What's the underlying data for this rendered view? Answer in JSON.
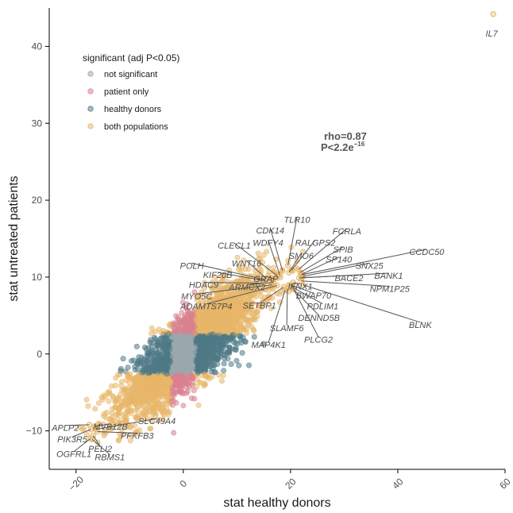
{
  "chart_data": {
    "type": "scatter",
    "xlabel": "stat healthy donors",
    "ylabel": "stat untreated patients",
    "xlim": [
      -25,
      60
    ],
    "ylim": [
      -15,
      45
    ],
    "x_ticks": [
      -20,
      0,
      20,
      40,
      60
    ],
    "y_ticks": [
      -10,
      0,
      10,
      20,
      30,
      40
    ],
    "grid": false,
    "legend": {
      "title": "significant (adj P<0.05)",
      "placement": "top-left",
      "entries": [
        {
          "name": "not significant",
          "color": "#9aa8ad"
        },
        {
          "name": "patient only",
          "color": "#d9828f"
        },
        {
          "name": "healthy donors",
          "color": "#4f7a86"
        },
        {
          "name": "both populations",
          "color": "#e8b66a"
        }
      ]
    },
    "annotation": {
      "rho_text": "rho=0.87",
      "p_text": "P<2.2e",
      "p_exponent": "−16"
    },
    "labeled_points": [
      {
        "gene": "IL7",
        "x": 57.8,
        "y": 44.2,
        "lx": 57.5,
        "ly": 41.7,
        "leader": false
      },
      {
        "gene": "TLR10",
        "x": 19.5,
        "y": 11.5,
        "lx": 21.2,
        "ly": 17.5,
        "leader": true
      },
      {
        "gene": "CDK14",
        "x": 18.5,
        "y": 10.8,
        "lx": 16.2,
        "ly": 16.1,
        "leader": true
      },
      {
        "gene": "FCRLA",
        "x": 21.5,
        "y": 11.0,
        "lx": 30.5,
        "ly": 16.0,
        "leader": true
      },
      {
        "gene": "RALGPS2",
        "x": 20.2,
        "y": 10.9,
        "lx": 24.6,
        "ly": 14.5,
        "leader": true
      },
      {
        "gene": "WDFY4",
        "x": 18.0,
        "y": 10.3,
        "lx": 15.8,
        "ly": 14.5,
        "leader": true
      },
      {
        "gene": "SPIB",
        "x": 21.8,
        "y": 10.6,
        "lx": 29.8,
        "ly": 13.6,
        "leader": true
      },
      {
        "gene": "CLECL1",
        "x": 17.5,
        "y": 10.2,
        "lx": 9.5,
        "ly": 14.1,
        "leader": true
      },
      {
        "gene": "SMO6",
        "x": 19.7,
        "y": 10.6,
        "lx": 22.0,
        "ly": 12.8,
        "leader": true
      },
      {
        "gene": "SP140",
        "x": 22.2,
        "y": 10.4,
        "lx": 29.0,
        "ly": 12.3,
        "leader": true
      },
      {
        "gene": "CCDC50",
        "x": 22.0,
        "y": 10.3,
        "lx": 45.4,
        "ly": 13.3,
        "leader": true
      },
      {
        "gene": "WNT16",
        "x": 15.5,
        "y": 9.8,
        "lx": 11.8,
        "ly": 11.8,
        "leader": true
      },
      {
        "gene": "POLH",
        "x": 15.0,
        "y": 9.7,
        "lx": 1.6,
        "ly": 11.5,
        "leader": true
      },
      {
        "gene": "SNX25",
        "x": 22.3,
        "y": 10.1,
        "lx": 34.7,
        "ly": 11.5,
        "leader": true
      },
      {
        "gene": "KIF20B",
        "x": 15.3,
        "y": 9.5,
        "lx": 6.4,
        "ly": 10.3,
        "leader": true
      },
      {
        "gene": "GRAP",
        "x": 16.8,
        "y": 9.8,
        "lx": 15.4,
        "ly": 9.8,
        "leader": true
      },
      {
        "gene": "BACE2",
        "x": 21.6,
        "y": 9.9,
        "lx": 30.9,
        "ly": 9.9,
        "leader": true
      },
      {
        "gene": "BANK1",
        "x": 22.1,
        "y": 9.9,
        "lx": 38.3,
        "ly": 10.2,
        "leader": true
      },
      {
        "gene": "HDAC9",
        "x": 15.0,
        "y": 9.2,
        "lx": 3.8,
        "ly": 9.0,
        "leader": true
      },
      {
        "gene": "ARMCX2",
        "x": 16.8,
        "y": 9.3,
        "lx": 11.9,
        "ly": 8.7,
        "leader": true
      },
      {
        "gene": "NPM1P25",
        "x": 22.0,
        "y": 9.5,
        "lx": 38.5,
        "ly": 8.5,
        "leader": true
      },
      {
        "gene": "IFNX1",
        "x": 20.5,
        "y": 9.3,
        "lx": 21.8,
        "ly": 8.8,
        "leader": true
      },
      {
        "gene": "MYO5C",
        "x": 16.6,
        "y": 9.0,
        "lx": 2.5,
        "ly": 7.5,
        "leader": true
      },
      {
        "gene": "BWAP70",
        "x": 20.0,
        "y": 9.0,
        "lx": 24.3,
        "ly": 7.6,
        "leader": true
      },
      {
        "gene": "ADAMTS7P4",
        "x": 17.5,
        "y": 8.9,
        "lx": 4.3,
        "ly": 6.2,
        "leader": true
      },
      {
        "gene": "SETBP1",
        "x": 18.7,
        "y": 8.7,
        "lx": 14.2,
        "ly": 6.3,
        "leader": true
      },
      {
        "gene": "PDLIM1",
        "x": 20.3,
        "y": 8.7,
        "lx": 26.0,
        "ly": 6.2,
        "leader": true
      },
      {
        "gene": "BLNK",
        "x": 22.3,
        "y": 9.0,
        "lx": 44.2,
        "ly": 3.8,
        "leader": true
      },
      {
        "gene": "DENND5B",
        "x": 20.4,
        "y": 8.5,
        "lx": 25.3,
        "ly": 4.7,
        "leader": true
      },
      {
        "gene": "SLAMF6",
        "x": 19.4,
        "y": 8.5,
        "lx": 19.3,
        "ly": 3.4,
        "leader": true
      },
      {
        "gene": "PLCG2",
        "x": 20.6,
        "y": 8.4,
        "lx": 25.2,
        "ly": 1.9,
        "leader": true
      },
      {
        "gene": "MAP4K1",
        "x": 19.0,
        "y": 8.3,
        "lx": 15.9,
        "ly": 1.2,
        "leader": true
      },
      {
        "gene": "APLP2",
        "x": -17.5,
        "y": -9.2,
        "lx": -22.0,
        "ly": -9.6,
        "leader": true
      },
      {
        "gene": "MVB12B",
        "x": -16.5,
        "y": -9.4,
        "lx": -13.6,
        "ly": -9.4,
        "leader": true
      },
      {
        "gene": "SLC49A4",
        "x": -16.2,
        "y": -9.8,
        "lx": -4.9,
        "ly": -8.7,
        "leader": true
      },
      {
        "gene": "PIK3R5",
        "x": -17.2,
        "y": -9.8,
        "lx": -20.7,
        "ly": -11.1,
        "leader": true
      },
      {
        "gene": "PFKFB3",
        "x": -16.0,
        "y": -10.1,
        "lx": -8.6,
        "ly": -10.6,
        "leader": true
      },
      {
        "gene": "PELI2",
        "x": -16.8,
        "y": -10.6,
        "lx": -15.5,
        "ly": -12.3,
        "leader": true
      },
      {
        "gene": "OGFRL1",
        "x": -17.3,
        "y": -11.0,
        "lx": -20.4,
        "ly": -13.0,
        "leader": true
      },
      {
        "gene": "RBMS1",
        "x": -17.0,
        "y": -11.1,
        "lx": -13.7,
        "ly": -13.4,
        "leader": true
      }
    ]
  }
}
